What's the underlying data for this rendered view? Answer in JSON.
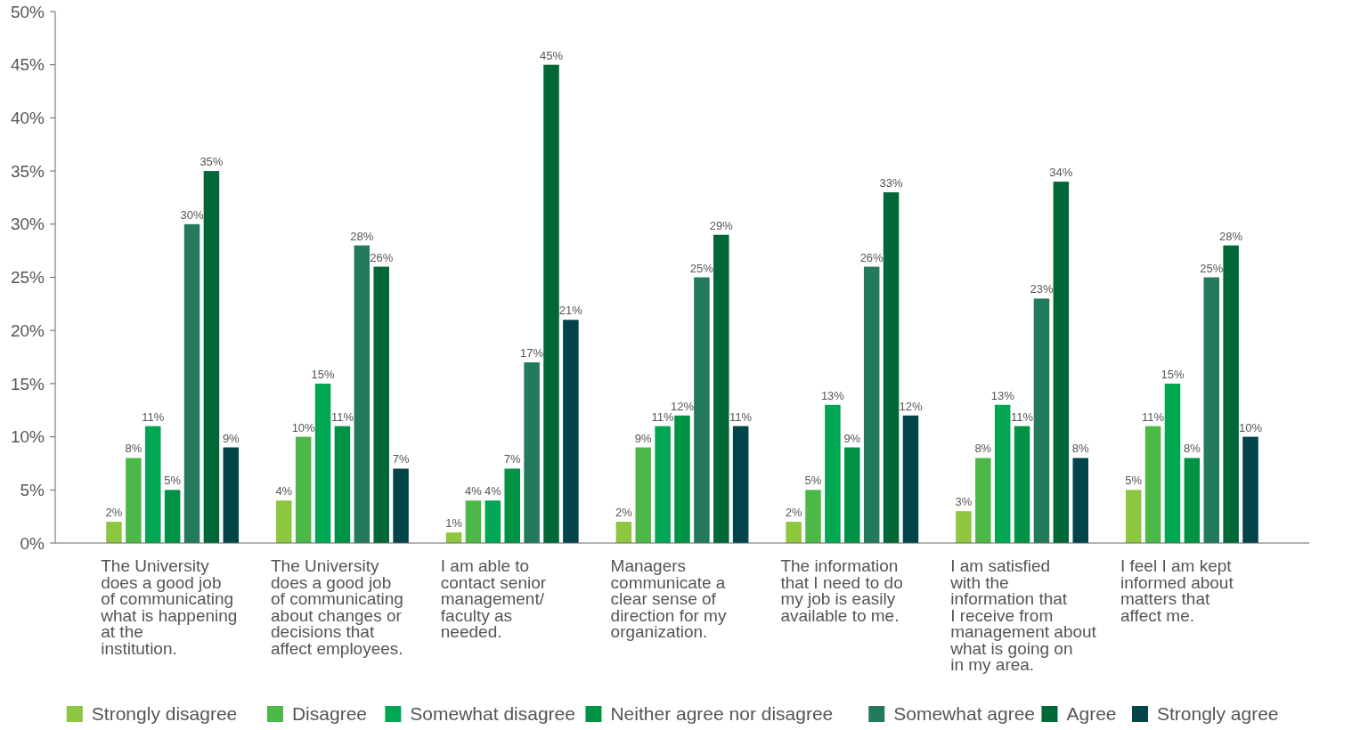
{
  "chart_data": {
    "type": "bar",
    "categories": [
      "The University does a good job of communicating what is happening at the institution.",
      "The University does a good job of communicating about changes or decisions that affect employees.",
      "I am able to contact senior management/ faculty as needed.",
      "Managers communicate a clear sense of direction for my organization.",
      "The information that I need to do my job is easily available to me.",
      "I am satisfied with the information that I receive from management about what is going on in my area.",
      "I feel I am kept informed about matters that affect me."
    ],
    "series": [
      {
        "name": "Strongly disagree",
        "color": "#8dc63f",
        "values": [
          2,
          4,
          1,
          2,
          2,
          3,
          5
        ]
      },
      {
        "name": "Disagree",
        "color": "#4cb848",
        "values": [
          8,
          10,
          4,
          9,
          5,
          8,
          11
        ]
      },
      {
        "name": "Somewhat disagree",
        "color": "#00a651",
        "values": [
          11,
          15,
          4,
          11,
          13,
          13,
          15
        ]
      },
      {
        "name": "Neither agree nor disagree",
        "color": "#009245",
        "values": [
          5,
          11,
          7,
          12,
          9,
          11,
          8
        ]
      },
      {
        "name": "Somewhat agree",
        "color": "#237b5c",
        "values": [
          30,
          28,
          17,
          25,
          26,
          23,
          25
        ]
      },
      {
        "name": "Agree",
        "color": "#006837",
        "values": [
          35,
          26,
          45,
          29,
          33,
          34,
          28
        ]
      },
      {
        "name": "Strongly agree",
        "color": "#03444a",
        "values": [
          9,
          7,
          21,
          11,
          12,
          8,
          10
        ]
      }
    ],
    "ylim": [
      0,
      50
    ],
    "yticks": [
      {
        "value": 0,
        "label": "0%"
      },
      {
        "value": 5,
        "label": "5%"
      },
      {
        "value": 10,
        "label": "10%"
      },
      {
        "value": 15,
        "label": "15%"
      },
      {
        "value": 20,
        "label": "20%"
      },
      {
        "value": 25,
        "label": "25%"
      },
      {
        "value": 30,
        "label": "30%"
      },
      {
        "value": 35,
        "label": "35%"
      },
      {
        "value": 40,
        "label": "40%"
      },
      {
        "value": 45,
        "label": "45%"
      },
      {
        "value": 50,
        "label": "50%"
      }
    ],
    "value_labels": [
      [
        "2%",
        "4%",
        "1%",
        "2%",
        "2%",
        "3%",
        "5%"
      ],
      [
        "8%",
        "10%",
        "4%",
        "9%",
        "5%",
        "8%",
        "11%"
      ],
      [
        "11%",
        "15%",
        "4%",
        "11%",
        "13%",
        "13%",
        "15%"
      ],
      [
        "5%",
        "11%",
        "7%",
        "12%",
        "9%",
        "11%",
        "8%"
      ],
      [
        "30%",
        "28%",
        "17%",
        "25%",
        "26%",
        "23%",
        "25%"
      ],
      [
        "35%",
        "26%",
        "45%",
        "29%",
        "33%",
        "34%",
        "28%"
      ],
      [
        "9%",
        "7%",
        "21%",
        "11%",
        "12%",
        "8%",
        "10%"
      ]
    ],
    "legend": "bottom",
    "grid": false
  }
}
